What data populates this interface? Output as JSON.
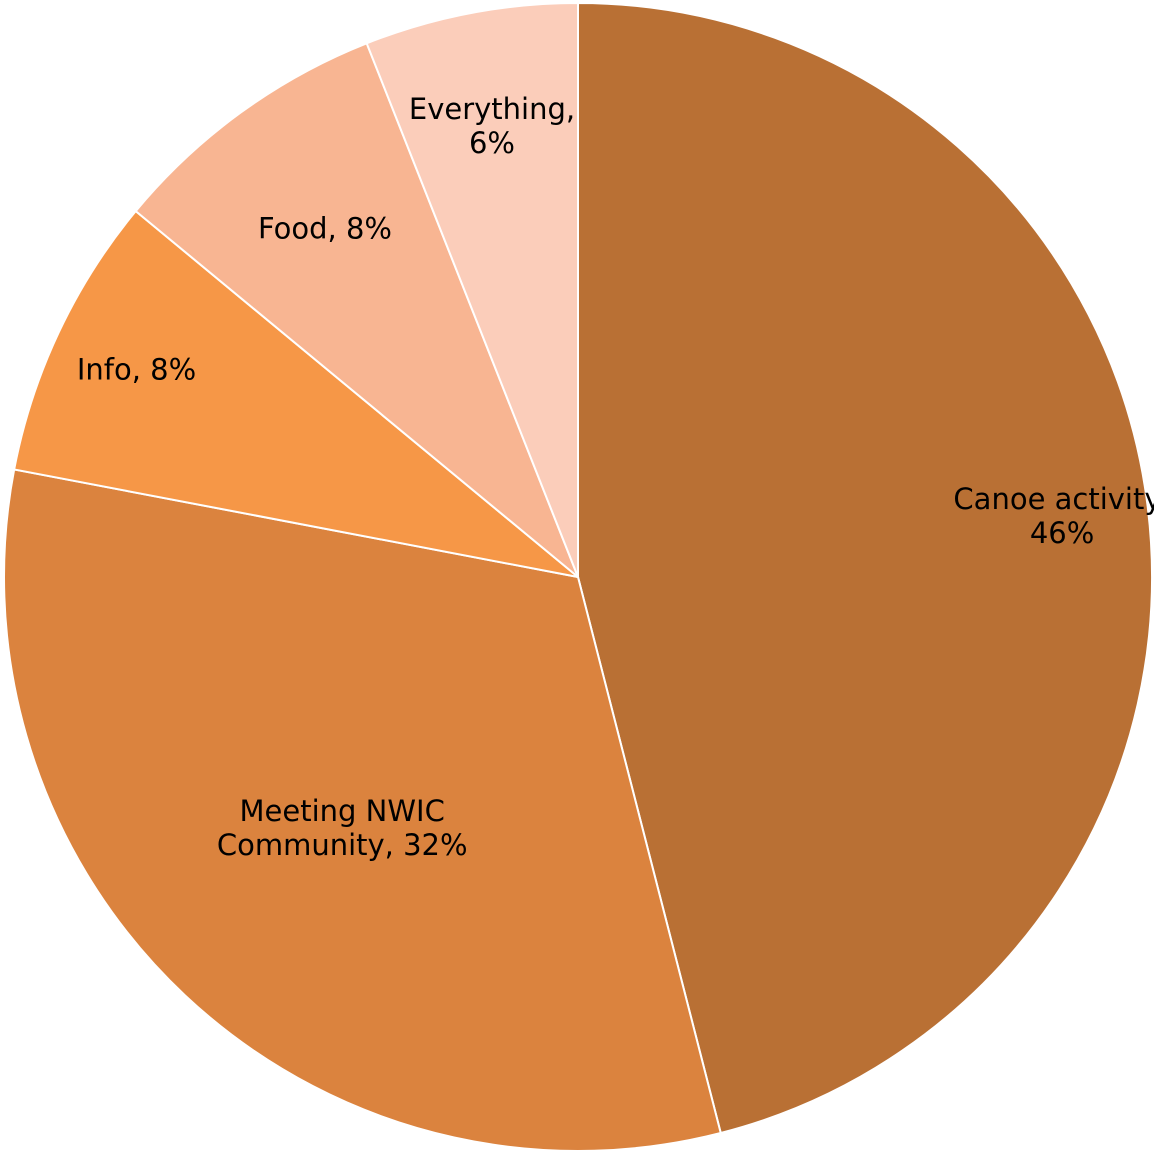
{
  "chart_data": {
    "type": "pie",
    "start_angle_deg": 0,
    "direction": "clockwise",
    "slices": [
      {
        "label": [
          "Canoe activity,",
          "46%"
        ],
        "value": 46,
        "color": "#B97034"
      },
      {
        "label": [
          "Meeting NWIC",
          "Community, 32%"
        ],
        "value": 32,
        "color": "#DB833E"
      },
      {
        "label": [
          "Info, 8%"
        ],
        "value": 8,
        "color": "#F69747"
      },
      {
        "label": [
          "Food, 8%"
        ],
        "value": 8,
        "color": "#F8B592"
      },
      {
        "label": [
          "Everything,",
          "6%"
        ],
        "value": 6,
        "color": "#FBCDBA"
      }
    ]
  }
}
